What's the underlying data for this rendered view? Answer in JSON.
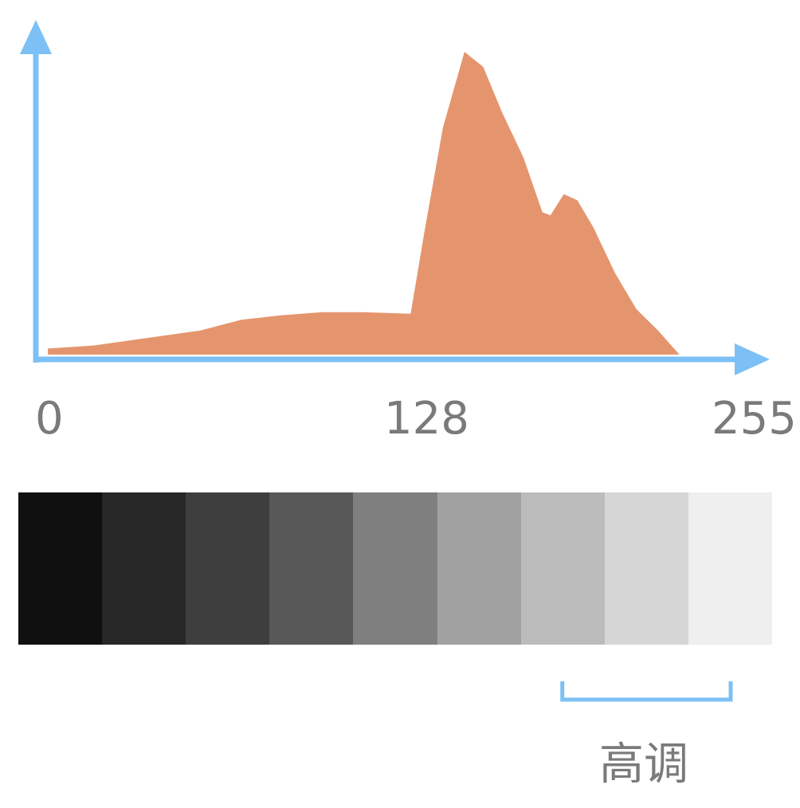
{
  "chart_data": {
    "type": "area",
    "title": "",
    "xlabel": "",
    "ylabel": "",
    "xlim": [
      0,
      255
    ],
    "ylim": [
      0,
      100
    ],
    "x_tick_labels": [
      "0",
      "128",
      "255"
    ],
    "series": [
      {
        "color": "#e5956d",
        "points": [
          [
            3,
            2
          ],
          [
            20,
            3
          ],
          [
            40,
            5.5
          ],
          [
            60,
            8
          ],
          [
            75,
            11.5
          ],
          [
            90,
            13
          ],
          [
            105,
            14
          ],
          [
            120,
            14
          ],
          [
            138,
            13.5
          ],
          [
            143,
            40
          ],
          [
            150,
            75
          ],
          [
            158,
            100
          ],
          [
            165,
            95
          ],
          [
            172,
            80
          ],
          [
            180,
            65
          ],
          [
            187,
            47
          ],
          [
            190,
            46
          ],
          [
            195,
            53
          ],
          [
            200,
            51
          ],
          [
            206,
            42
          ],
          [
            214,
            27
          ],
          [
            222,
            15
          ],
          [
            230,
            8
          ],
          [
            238,
            0
          ]
        ]
      }
    ],
    "grid": false,
    "axis_color": "#7cc0f5"
  },
  "gray_scale": {
    "swatches": [
      "#101010",
      "#272727",
      "#3e3e3e",
      "#575757",
      "#7f7f7f",
      "#a1a1a1",
      "#bcbcbc",
      "#d6d6d6",
      "#efefef"
    ]
  },
  "highlight": {
    "label": "高调",
    "range_start_swatch": 6,
    "range_end_swatch": 8,
    "bracket_color": "#7cc0f5"
  }
}
